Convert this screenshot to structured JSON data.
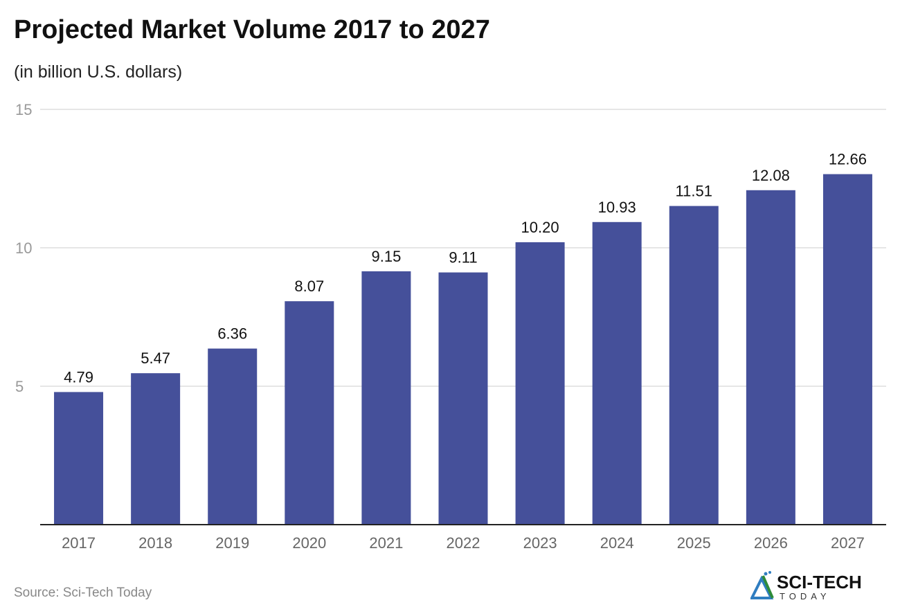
{
  "title": "Projected Market Volume 2017 to 2027",
  "subtitle": "(in billion U.S. dollars)",
  "source": "Source: Sci-Tech Today",
  "logo": {
    "text": "SCI-TECH",
    "subtext": "TODAY"
  },
  "colors": {
    "bar": "#45509a",
    "grid": "#dddddd",
    "axis_text": "#999999"
  },
  "chart_data": {
    "type": "bar",
    "title": "Projected Market Volume 2017 to 2027",
    "subtitle": "(in billion U.S. dollars)",
    "categories": [
      "2017",
      "2018",
      "2019",
      "2020",
      "2021",
      "2022",
      "2023",
      "2024",
      "2025",
      "2026",
      "2027"
    ],
    "values": [
      4.79,
      5.47,
      6.36,
      8.07,
      9.15,
      9.11,
      10.2,
      10.93,
      11.51,
      12.08,
      12.66
    ],
    "data_labels": [
      "4.79",
      "5.47",
      "6.36",
      "8.07",
      "9.15",
      "9.11",
      "10.20",
      "10.93",
      "11.51",
      "12.08",
      "12.66"
    ],
    "ylim": [
      0,
      15
    ],
    "yticks": [
      5,
      10,
      15
    ],
    "grid": true,
    "legend": "none"
  }
}
